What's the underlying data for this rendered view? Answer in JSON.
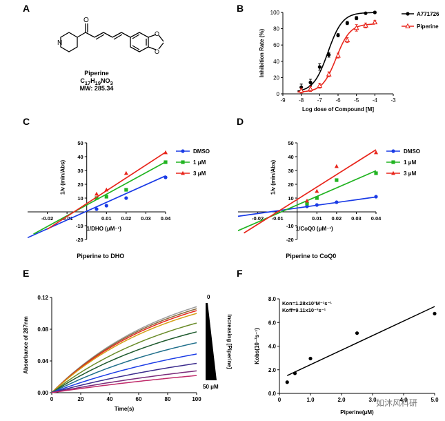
{
  "panel_letters": [
    "A",
    "B",
    "C",
    "D",
    "E",
    "F"
  ],
  "molecule": {
    "name": "Piperine",
    "formula_html": "C<sub>17</sub>H<sub>19</sub>NO<sub>3</sub>",
    "formula_text": "C17H19NO3",
    "mw": "MW: 285.34"
  },
  "watermark": "如沐风科研",
  "colors": {
    "black": "#000000",
    "red": "#e8251b",
    "blue": "#1a3be6",
    "green": "#22b422"
  },
  "chart_data": [
    {
      "panel": "B",
      "type": "line",
      "title": "",
      "xlabel": "Log dose of Compound [M]",
      "ylabel": "Inhibition Rate (%)",
      "xlim": [
        -9,
        -3
      ],
      "ylim": [
        0,
        100
      ],
      "xticks": [
        "-9",
        "-8",
        "-7",
        "-6",
        "-5",
        "-4",
        "-3"
      ],
      "yticks": [
        "0",
        "20",
        "40",
        "60",
        "80",
        "100"
      ],
      "legend": "top-right",
      "series": [
        {
          "name": "A771726",
          "color": "#000000",
          "marker": "circle",
          "x": [
            -8,
            -7.5,
            -7,
            -6.5,
            -6,
            -5.5,
            -5,
            -4.5,
            -4
          ],
          "y": [
            8,
            14,
            33,
            48,
            72,
            87,
            93,
            99,
            100
          ],
          "err": [
            4,
            4,
            4,
            3,
            2,
            2,
            2,
            1,
            1
          ],
          "fit": {
            "bottom": 2,
            "top": 100,
            "logec50": -6.55,
            "hill": 1.1
          }
        },
        {
          "name": "Piperine",
          "color": "#e8251b",
          "marker": "triangle-open",
          "x": [
            -8,
            -7.5,
            -7,
            -6.5,
            -6,
            -5.5,
            -5,
            -4.5,
            -4
          ],
          "y": [
            4,
            6,
            10,
            24,
            47,
            66,
            81,
            84,
            88
          ],
          "err": [
            3,
            3,
            3,
            3,
            3,
            3,
            4,
            3,
            2
          ],
          "fit": {
            "bottom": 2,
            "top": 86,
            "logec50": -6.1,
            "hill": 1.15
          }
        }
      ]
    },
    {
      "panel": "C",
      "type": "scatter",
      "xlabel": "1/DHO (μM⁻¹)",
      "ylabel": "1/v (min/Abs)",
      "subtitle": "Piperine to DHO",
      "xlim": [
        -0.03,
        0.04
      ],
      "ylim": [
        -20,
        50
      ],
      "xticks": [
        "-0.02",
        "-0.01",
        "0.01",
        "0.02",
        "0.03",
        "0.04"
      ],
      "yticks": [
        "-20",
        "-10",
        "10",
        "20",
        "30",
        "40",
        "50"
      ],
      "legend": "right",
      "series": [
        {
          "name": "DMSO",
          "color": "#1a3be6",
          "marker": "circle",
          "x": [
            0.005,
            0.01,
            0.02,
            0.04
          ],
          "y": [
            2,
            4.5,
            10,
            25
          ],
          "line": {
            "slope": 640,
            "intercept": 0.5,
            "x0": -0.03,
            "x1": 0.04
          }
        },
        {
          "name": "1 μM",
          "color": "#22b422",
          "marker": "square",
          "x": [
            0.005,
            0.01,
            0.02,
            0.04
          ],
          "y": [
            10,
            11,
            16,
            36
          ],
          "line": {
            "slope": 780,
            "intercept": 5,
            "x0": -0.027,
            "x1": 0.04
          }
        },
        {
          "name": "3 μM",
          "color": "#e8251b",
          "marker": "triangle",
          "x": [
            0.005,
            0.01,
            0.02,
            0.04
          ],
          "y": [
            13,
            16,
            28,
            43
          ],
          "line": {
            "slope": 930,
            "intercept": 6,
            "x0": -0.02,
            "x1": 0.04
          }
        }
      ]
    },
    {
      "panel": "D",
      "type": "scatter",
      "xlabel": "1/CoQ0  (μM⁻¹)",
      "ylabel": "1/v (min/Abs)",
      "subtitle": "Piperine to CoQ0",
      "xlim": [
        -0.03,
        0.04
      ],
      "ylim": [
        -20,
        50
      ],
      "xticks": [
        "-0.02",
        "-0.01",
        "0.01",
        "0.02",
        "0.03",
        "0.04"
      ],
      "yticks": [
        "-20",
        "-10",
        "10",
        "20",
        "30",
        "40",
        "50"
      ],
      "legend": "right",
      "series": [
        {
          "name": "DMSO",
          "color": "#1a3be6",
          "marker": "circle",
          "x": [
            0.005,
            0.01,
            0.02,
            0.04
          ],
          "y": [
            4,
            5,
            7,
            11
          ],
          "line": {
            "slope": 200,
            "intercept": 2.8,
            "x0": -0.03,
            "x1": 0.04
          }
        },
        {
          "name": "1 μM",
          "color": "#22b422",
          "marker": "square",
          "x": [
            0.005,
            0.01,
            0.02,
            0.04
          ],
          "y": [
            6,
            10,
            23,
            28
          ],
          "line": {
            "slope": 620,
            "intercept": 5,
            "x0": -0.03,
            "x1": 0.04
          }
        },
        {
          "name": "3 μM",
          "color": "#e8251b",
          "marker": "triangle",
          "x": [
            0.005,
            0.01,
            0.02,
            0.04
          ],
          "y": [
            8,
            15,
            33,
            43
          ],
          "line": {
            "slope": 900,
            "intercept": 9,
            "x0": -0.027,
            "x1": 0.04
          }
        }
      ]
    },
    {
      "panel": "E",
      "type": "line",
      "xlabel": "Time(s)",
      "ylabel": "Absorbance of 287nm",
      "xlim": [
        0,
        100
      ],
      "ylim": [
        0,
        0.12
      ],
      "xticks": [
        "0",
        "20",
        "40",
        "60",
        "80",
        "100"
      ],
      "yticks": [
        "0.00",
        "0.04",
        "0.08",
        "0.12"
      ],
      "legend_text": {
        "top": "0",
        "bottom": "50 μM",
        "side": "Increasing [Piperine]"
      },
      "series": [
        {
          "name": "c1",
          "color": "#9e9e9e",
          "amp": 0.155,
          "k": 0.012
        },
        {
          "name": "c2",
          "color": "#8b6a3c",
          "amp": 0.15,
          "k": 0.0122
        },
        {
          "name": "c3",
          "color": "#e8251b",
          "amp": 0.148,
          "k": 0.012
        },
        {
          "name": "c4",
          "color": "#d4a017",
          "amp": 0.143,
          "k": 0.012
        },
        {
          "name": "c5",
          "color": "#6a8c2a",
          "amp": 0.135,
          "k": 0.0105
        },
        {
          "name": "c6",
          "color": "#1e5a2e",
          "amp": 0.125,
          "k": 0.0095
        },
        {
          "name": "c7",
          "color": "#1f6f8b",
          "amp": 0.11,
          "k": 0.0085
        },
        {
          "name": "c8",
          "color": "#1a3be6",
          "amp": 0.095,
          "k": 0.0072
        },
        {
          "name": "c9",
          "color": "#3a2a8c",
          "amp": 0.08,
          "k": 0.0062
        },
        {
          "name": "c10",
          "color": "#7a2a7a",
          "amp": 0.065,
          "k": 0.0055
        },
        {
          "name": "c11",
          "color": "#c02a6a",
          "amp": 0.055,
          "k": 0.005
        }
      ]
    },
    {
      "panel": "F",
      "type": "scatter",
      "xlabel": "Piperine(μM)",
      "ylabel": "Kobs(10⁻²s⁻¹)",
      "xlim": [
        0,
        5
      ],
      "ylim": [
        0,
        8
      ],
      "xticks": [
        "0",
        "1.0",
        "2.0",
        "3.0",
        "4.0",
        "5.0"
      ],
      "yticks": [
        "0.0",
        "2.0",
        "4.0",
        "6.0",
        "8.0"
      ],
      "annotations": [
        "Kon=1.28x10³M⁻¹s⁻¹",
        "Koff=9.11x10⁻³s⁻¹"
      ],
      "series": [
        {
          "name": "Kobs",
          "color": "#000000",
          "marker": "circle",
          "x": [
            0.25,
            0.5,
            1.0,
            2.5,
            5.0
          ],
          "y": [
            0.95,
            1.7,
            2.95,
            5.1,
            6.75
          ],
          "line": {
            "slope": 1.23,
            "intercept": 1.2,
            "x0": 0.25,
            "x1": 5.0
          }
        }
      ]
    }
  ]
}
